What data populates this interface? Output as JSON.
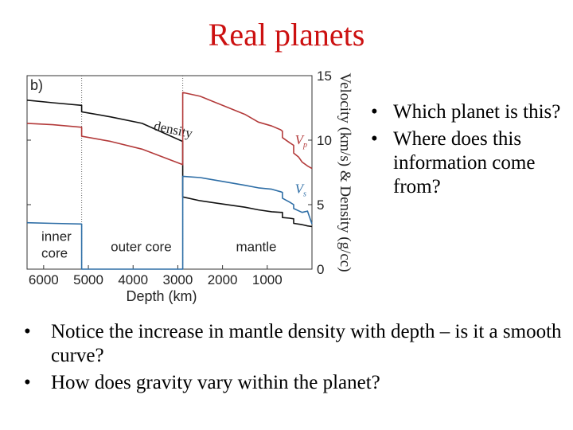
{
  "title": "Real planets",
  "bullets_right": [
    "Which planet is this?",
    "Where does this information come from?"
  ],
  "bullets_bottom": [
    "Notice the increase in mantle density with depth – is it a smooth curve?",
    "How does gravity vary within the planet?"
  ],
  "bullet_char": "•",
  "chart_data": {
    "type": "line",
    "panel_label": "b)",
    "xlabel": "Depth (km)",
    "ylabel": "Velocity (km/s) & Density (g/cc)",
    "xlim": [
      6371,
      0
    ],
    "ylim": [
      0,
      15
    ],
    "x_ticks": [
      6000,
      5000,
      4000,
      3000,
      2000,
      1000
    ],
    "y_ticks": [
      0,
      5,
      10,
      15
    ],
    "boundaries_km": [
      5150,
      2890
    ],
    "regions": [
      "inner core",
      "outer core",
      "mantle"
    ],
    "region_labels": [
      {
        "text": "inner",
        "x": 6050,
        "y": 2.2
      },
      {
        "text": "core",
        "x": 6050,
        "y": 0.9
      },
      {
        "text": "outer core",
        "x": 4500,
        "y": 1.4
      },
      {
        "text": "mantle",
        "x": 1700,
        "y": 1.4
      }
    ],
    "series": [
      {
        "name": "density",
        "color": "#111111",
        "label_pos": {
          "x": 3550,
          "y": 10.8
        },
        "x": [
          6371,
          5800,
          5150,
          5150,
          4500,
          3800,
          2890,
          2890,
          2500,
          2000,
          1500,
          1200,
          900,
          700,
          660,
          660,
          500,
          410,
          410,
          220,
          100,
          0
        ],
        "y": [
          13.1,
          12.9,
          12.7,
          12.2,
          11.8,
          11.3,
          9.9,
          5.6,
          5.3,
          5.05,
          4.8,
          4.6,
          4.45,
          4.4,
          4.4,
          4.0,
          3.95,
          3.9,
          3.55,
          3.45,
          3.35,
          3.3
        ]
      },
      {
        "name": "Vp",
        "color": "#b33a3a",
        "label_pos": {
          "x": 380,
          "y": 9.7
        },
        "x": [
          6371,
          5800,
          5150,
          5150,
          4500,
          3800,
          2890,
          2890,
          2500,
          2000,
          1500,
          1200,
          900,
          700,
          660,
          660,
          500,
          410,
          410,
          300,
          220,
          100,
          0
        ],
        "y": [
          11.3,
          11.2,
          11.0,
          10.3,
          9.9,
          9.3,
          8.1,
          13.7,
          13.4,
          12.7,
          12.0,
          11.4,
          11.1,
          10.8,
          10.7,
          10.2,
          9.8,
          9.6,
          9.0,
          8.7,
          8.3,
          8.0,
          7.8
        ]
      },
      {
        "name": "Vs",
        "color": "#2e6ea6",
        "label_pos": {
          "x": 380,
          "y": 5.9
        },
        "x": [
          6371,
          5800,
          5150,
          5150,
          2890,
          2890,
          2500,
          2000,
          1500,
          1200,
          900,
          700,
          660,
          660,
          500,
          410,
          410,
          220,
          100,
          0
        ],
        "y": [
          3.6,
          3.55,
          3.5,
          0,
          0,
          7.2,
          7.1,
          6.8,
          6.5,
          6.3,
          6.2,
          6.0,
          5.95,
          5.5,
          5.2,
          5.0,
          4.7,
          4.4,
          4.5,
          3.5
        ]
      }
    ]
  }
}
